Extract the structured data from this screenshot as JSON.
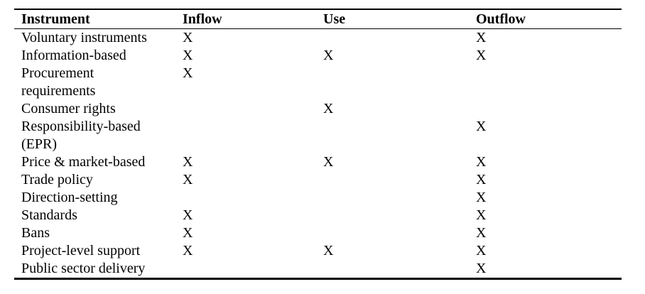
{
  "table": {
    "headers": [
      "Instrument",
      "Inflow",
      "Use",
      "Outflow"
    ],
    "rows": [
      {
        "instrument": "Voluntary instruments",
        "inflow": "X",
        "use": "",
        "outflow": "X"
      },
      {
        "instrument": "Information-based",
        "inflow": "X",
        "use": "X",
        "outflow": "X"
      },
      {
        "instrument": "Procurement requirements",
        "inflow": "X",
        "use": "",
        "outflow": ""
      },
      {
        "instrument": "Consumer rights",
        "inflow": "",
        "use": "X",
        "outflow": ""
      },
      {
        "instrument": "Responsibility-based (EPR)",
        "inflow": "",
        "use": "",
        "outflow": "X"
      },
      {
        "instrument": "Price & market-based",
        "inflow": "X",
        "use": "X",
        "outflow": "X"
      },
      {
        "instrument": "Trade policy",
        "inflow": "X",
        "use": "",
        "outflow": "X"
      },
      {
        "instrument": "Direction-setting",
        "inflow": "",
        "use": "",
        "outflow": "X"
      },
      {
        "instrument": "Standards",
        "inflow": "X",
        "use": "",
        "outflow": "X"
      },
      {
        "instrument": "Bans",
        "inflow": "X",
        "use": "",
        "outflow": "X"
      },
      {
        "instrument": "Project-level support",
        "inflow": "X",
        "use": "X",
        "outflow": "X"
      },
      {
        "instrument": "Public sector delivery",
        "inflow": "",
        "use": "",
        "outflow": "X"
      }
    ]
  }
}
